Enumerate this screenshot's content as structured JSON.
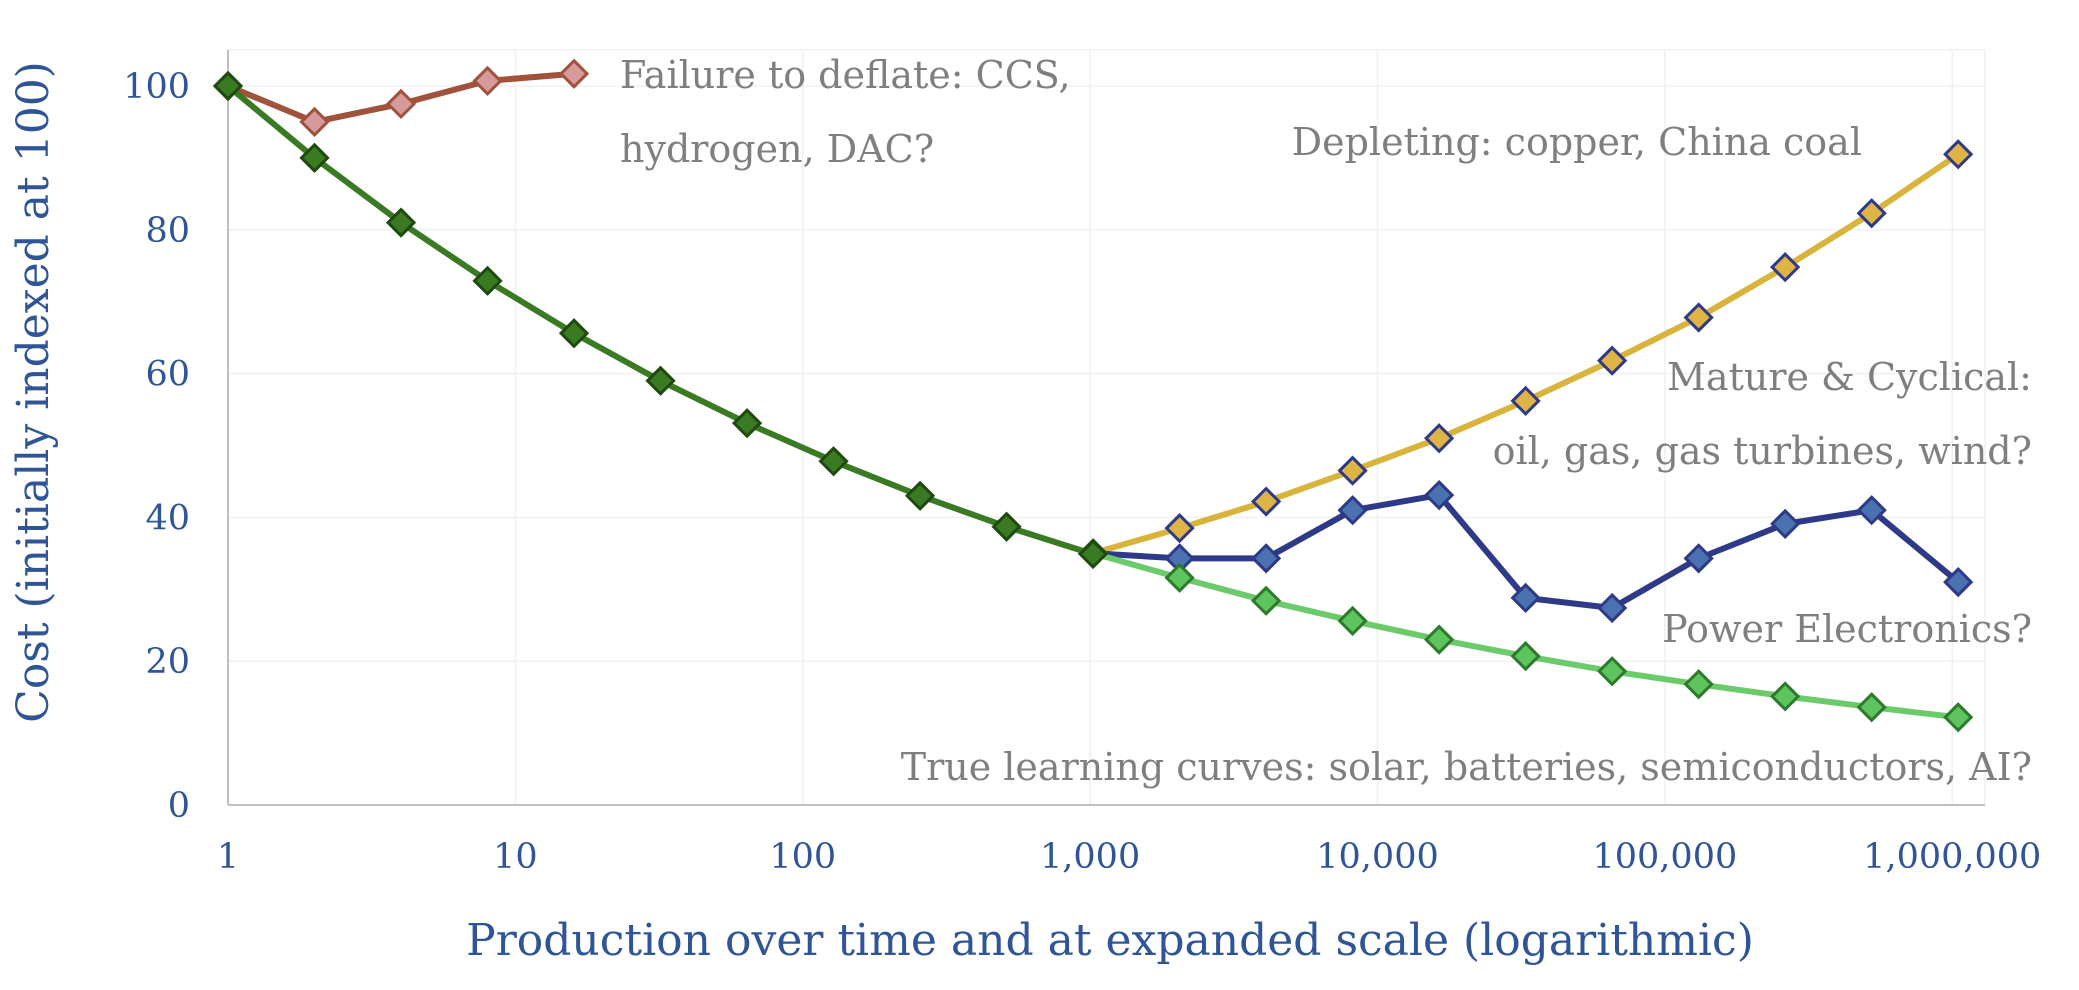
{
  "chart_data": {
    "type": "line",
    "xlabel": "Production over time and at expanded scale (logarithmic)",
    "ylabel": "Cost (initially indexed at 100)",
    "x_scale": "log",
    "xlim": [
      1,
      1300000
    ],
    "ylim": [
      0,
      105
    ],
    "grid": true,
    "x_ticks": [
      1,
      10,
      100,
      1000,
      10000,
      100000,
      1000000
    ],
    "x_tick_labels": [
      "1",
      "10",
      "100",
      "1,000",
      "10,000",
      "100,000",
      "1,000,000"
    ],
    "y_ticks": [
      0,
      20,
      40,
      60,
      80,
      100
    ],
    "y_tick_labels": [
      "0",
      "20",
      "40",
      "60",
      "80",
      "100"
    ],
    "series": [
      {
        "key": "failure",
        "line_color": "#A0523D",
        "marker_fill": "#D79A9A",
        "marker_stroke": "#A0523D",
        "x": [
          1,
          2,
          4,
          8,
          16
        ],
        "y": [
          100,
          95,
          97.5,
          100.7,
          101.7
        ]
      },
      {
        "key": "depleting",
        "line_color": "#D9B43C",
        "marker_fill": "#DDB445",
        "marker_stroke": "#2E3A87",
        "x": [
          1024,
          2048,
          4096,
          8192,
          16384,
          32768,
          65536,
          131072,
          262144,
          524288,
          1048576
        ],
        "y": [
          35,
          38.5,
          42.2,
          46.5,
          51,
          56.2,
          61.8,
          67.8,
          74.8,
          82.3,
          90.5
        ]
      },
      {
        "key": "mature",
        "line_color": "#2E3A87",
        "marker_fill": "#4A72B0",
        "marker_stroke": "#2E3A87",
        "x": [
          1024,
          2048,
          4096,
          8192,
          16384,
          32768,
          65536,
          131072,
          262144,
          524288,
          1048576
        ],
        "y": [
          35,
          34.3,
          34.3,
          41,
          43.1,
          28.8,
          27.4,
          34.3,
          39.1,
          41,
          31
        ]
      },
      {
        "key": "learning",
        "line_color": "#6BCB6B",
        "marker_fill": "#5EC45E",
        "marker_stroke": "#2D7A2D",
        "x": [
          1024,
          2048,
          4096,
          8192,
          16384,
          32768,
          65536,
          131072,
          262144,
          524288,
          1048576
        ],
        "y": [
          35,
          31.6,
          28.4,
          25.6,
          23,
          20.7,
          18.6,
          16.8,
          15.1,
          13.6,
          12.2
        ]
      },
      {
        "key": "common",
        "line_color": "#3A7A22",
        "marker_fill": "#3A7A22",
        "marker_stroke": "#1E4A10",
        "x": [
          1,
          2,
          4,
          8,
          16,
          32,
          64,
          128,
          256,
          512,
          1024
        ],
        "y": [
          100,
          90,
          81,
          72.9,
          65.6,
          59,
          53.1,
          47.8,
          43,
          38.7,
          34.9
        ]
      }
    ],
    "annotations": {
      "failure_1": "Failure to deflate: CCS,",
      "failure_2": "hydrogen, DAC?",
      "depleting": "Depleting: copper, China coal",
      "mature_1": "Mature & Cyclical:",
      "mature_2": "oil, gas, gas turbines, wind?",
      "power": "Power Electronics?",
      "learning": "True learning curves: solar, batteries, semiconductors, AI?"
    }
  }
}
